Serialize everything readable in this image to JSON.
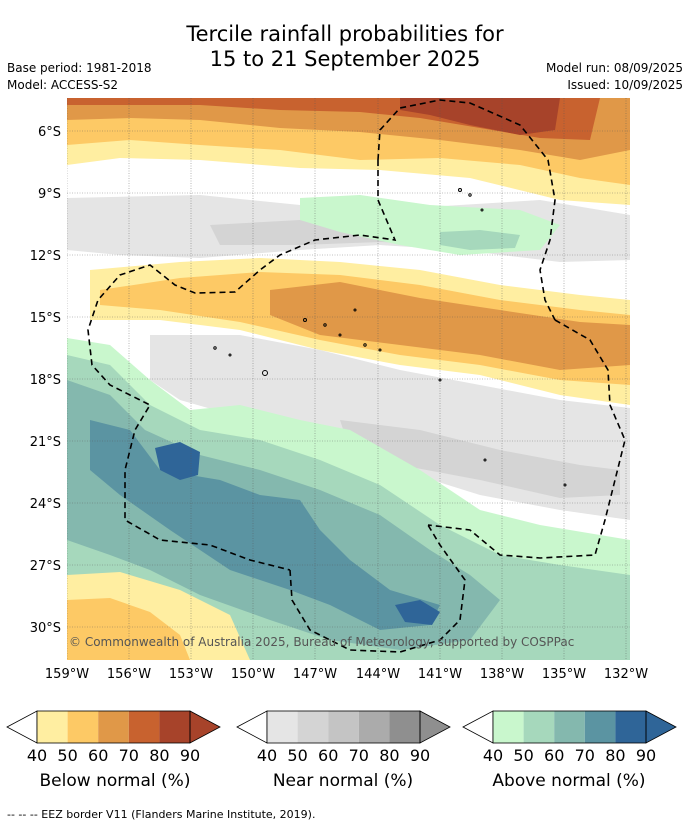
{
  "header": {
    "title_line1": "Tercile rainfall probabilities for",
    "title_line2": "15 to 21 September 2025",
    "base_period": "Base period: 1981-2018",
    "model": "Model: ACCESS-S2",
    "model_run": "Model run: 08/09/2025",
    "issued": "Issued: 10/09/2025"
  },
  "map": {
    "lat_labels": [
      "6°S",
      "9°S",
      "12°S",
      "15°S",
      "18°S",
      "21°S",
      "24°S",
      "27°S",
      "30°S"
    ],
    "lon_labels": [
      "159°W",
      "156°W",
      "153°W",
      "150°W",
      "147°W",
      "144°W",
      "141°W",
      "138°W",
      "135°W",
      "132°W"
    ],
    "copyright": "© Commonwealth of Australia 2025, Bureau of Meteorology, supported by COSPPac",
    "colors": {
      "below": [
        "#ffeea1",
        "#fdc965",
        "#e09848",
        "#c8622f",
        "#a7432a"
      ],
      "near": [
        "#e5e5e5",
        "#d4d4d4",
        "#c4c4c4",
        "#ababab",
        "#8f8f8f"
      ],
      "above": [
        "#c9f7cd",
        "#a6d8bc",
        "#84b8ae",
        "#5b94a2",
        "#2f6598"
      ],
      "eez_border": "#000000"
    }
  },
  "colorbars": [
    {
      "label": "Below normal (%)",
      "ticks": [
        "40",
        "50",
        "60",
        "70",
        "80",
        "90"
      ]
    },
    {
      "label": "Near normal (%)",
      "ticks": [
        "40",
        "50",
        "60",
        "70",
        "80",
        "90"
      ]
    },
    {
      "label": "Above normal (%)",
      "ticks": [
        "40",
        "50",
        "60",
        "70",
        "80",
        "90"
      ]
    }
  ],
  "footer": "--  --  -- EEZ border V11 (Flanders Marine Institute, 2019)."
}
